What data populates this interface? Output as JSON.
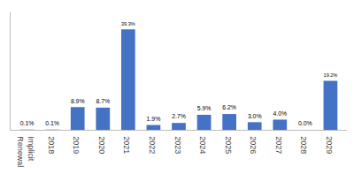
{
  "chart_data": {
    "type": "bar",
    "categories": [
      "Implicit\nRenewal",
      "2018",
      "2019",
      "2020",
      "2021",
      "2022",
      "2023",
      "2024",
      "2025",
      "2026",
      "2027",
      "2028",
      "2029"
    ],
    "values": [
      0.1,
      0.1,
      8.9,
      8.7,
      39.3,
      1.9,
      2.7,
      5.9,
      6.2,
      3.0,
      4.0,
      0.0,
      19.2
    ],
    "value_labels": [
      "0.1%",
      "0.1%",
      "8.9%",
      "8.7%",
      "39.3%",
      "1.9%",
      "2.7%",
      "5.9%",
      "6.2%",
      "3.0%",
      "4.0%",
      "0.0%",
      "19.2%"
    ],
    "color": "#4472C4",
    "ylim": [
      0,
      46
    ],
    "tick_labels": "x",
    "grid": false
  }
}
